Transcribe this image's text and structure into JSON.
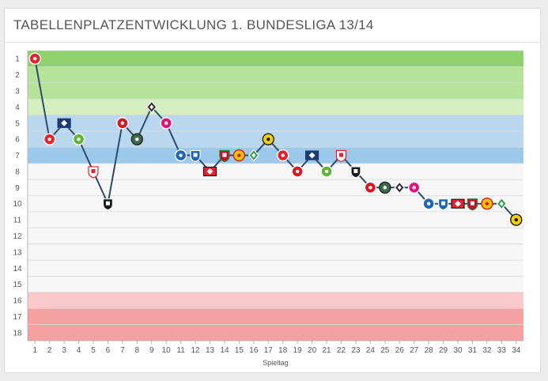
{
  "title": "TABELLENPLATZENTWICKLUNG 1. BUNDESLIGA 13/14",
  "chart_data": {
    "type": "line",
    "title": "TABELLENPLATZENTWICKLUNG 1. BUNDESLIGA 13/14",
    "xlabel": "Spieltag",
    "ylabel": "",
    "x": [
      1,
      2,
      3,
      4,
      5,
      6,
      7,
      8,
      9,
      10,
      11,
      12,
      13,
      14,
      15,
      16,
      17,
      18,
      19,
      20,
      21,
      22,
      23,
      24,
      25,
      26,
      27,
      28,
      29,
      30,
      31,
      32,
      33,
      34
    ],
    "y": [
      1,
      6,
      5,
      6,
      8,
      10,
      5,
      6,
      4,
      5,
      7,
      7,
      8,
      7,
      7,
      7,
      6,
      7,
      8,
      7,
      8,
      7,
      8,
      9,
      9,
      9,
      9,
      10,
      10,
      10,
      10,
      10,
      10,
      11
    ],
    "opponent_icons": [
      "eagle-crest",
      "eagle-crest",
      "diamond-crest",
      "wolf-crest",
      "v-crest",
      "fr-crest",
      "mainz-crest",
      "96-crest",
      "gladbach-crest",
      "fcb-crest",
      "schalke-crest",
      "tsg-crest",
      "bayer-crest",
      "fca-crest",
      "eintracht-bs-crest",
      "werder-crest",
      "bvb-crest",
      "eagle-crest",
      "mainz-crest",
      "diamond-crest",
      "wolf-crest",
      "v-crest",
      "fr-crest",
      "mainz-crest",
      "96-crest",
      "gladbach-crest",
      "fcb-crest",
      "schalke-crest",
      "tsg-crest",
      "bayer-crest",
      "fca-crest",
      "eintracht-bs-crest",
      "werder-crest",
      "bvb-crest"
    ],
    "ylim": [
      1,
      18
    ],
    "y_inverted": true,
    "y_ticks": [
      1,
      2,
      3,
      4,
      5,
      6,
      7,
      8,
      9,
      10,
      11,
      12,
      13,
      14,
      15,
      16,
      17,
      18
    ],
    "x_ticks": [
      1,
      2,
      3,
      4,
      5,
      6,
      7,
      8,
      9,
      10,
      11,
      12,
      13,
      14,
      15,
      16,
      17,
      18,
      19,
      20,
      21,
      22,
      23,
      24,
      25,
      26,
      27,
      28,
      29,
      30,
      31,
      32,
      33,
      34
    ],
    "grid": true,
    "line_color": "#2f4b6b",
    "bands": [
      {
        "from": 1,
        "to": 1,
        "color": "#8fd16a"
      },
      {
        "from": 2,
        "to": 3,
        "color": "#b6e29a"
      },
      {
        "from": 4,
        "to": 4,
        "color": "#d3efbf"
      },
      {
        "from": 5,
        "to": 6,
        "color": "#b9d7ef"
      },
      {
        "from": 7,
        "to": 7,
        "color": "#9cc8ea"
      },
      {
        "from": 8,
        "to": 15,
        "color": "#f7f7f7"
      },
      {
        "from": 16,
        "to": 16,
        "color": "#fbc9c9"
      },
      {
        "from": 17,
        "to": 18,
        "color": "#f6a1a1"
      }
    ]
  }
}
